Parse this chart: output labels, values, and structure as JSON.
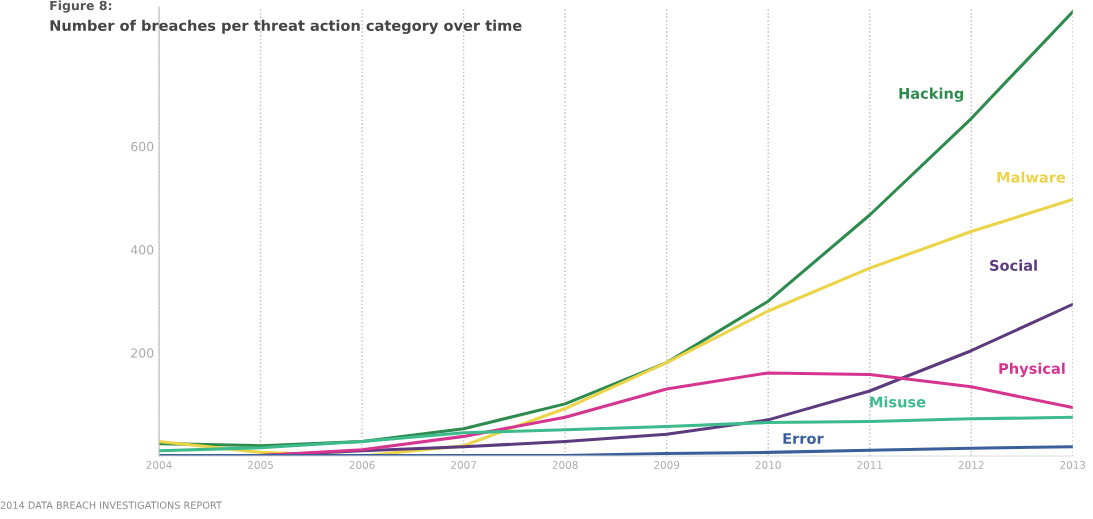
{
  "chart_data": {
    "type": "line",
    "title": "Figure 8:",
    "subtitle": "Number of breaches per threat action category over time",
    "x": [
      2004,
      2005,
      2006,
      2007,
      2008,
      2009,
      2010,
      2011,
      2012,
      2013
    ],
    "series": [
      {
        "name": "Hacking",
        "color": "#2e8b4e",
        "values": [
          24,
          20,
          28,
          53,
          101,
          181,
          300,
          467,
          654,
          861
        ]
      },
      {
        "name": "Malware",
        "color": "#ecd448",
        "values": [
          28,
          7,
          0,
          20,
          92,
          181,
          281,
          364,
          435,
          497
        ]
      },
      {
        "name": "Social",
        "color": "#5b3a7e",
        "values": [
          0,
          1,
          10,
          18,
          28,
          42,
          70,
          126,
          204,
          294
        ]
      },
      {
        "name": "Physical",
        "color": "#d6358f",
        "values": [
          0,
          1,
          12,
          38,
          75,
          130,
          161,
          158,
          134,
          94
        ]
      },
      {
        "name": "Misuse",
        "color": "#3dbb8c",
        "values": [
          10,
          16,
          28,
          45,
          51,
          57,
          65,
          67,
          72,
          75
        ]
      },
      {
        "name": "Error",
        "color": "#3a5f9a",
        "values": [
          1,
          1,
          1,
          1,
          1,
          5,
          7,
          11,
          15,
          18
        ]
      }
    ],
    "xlim": [
      2004,
      2013
    ],
    "xticks": [
      2004,
      2005,
      2006,
      2007,
      2008,
      2009,
      2010,
      2011,
      2012,
      2013
    ],
    "ylim": [
      0,
      870
    ],
    "yticks": [
      200,
      400,
      600
    ],
    "grid": "x",
    "legend": false,
    "marker": "none",
    "line_style": "solid",
    "annotations": [
      "2014 DATA BREACH INVESTIGATIONS REPORT"
    ]
  }
}
